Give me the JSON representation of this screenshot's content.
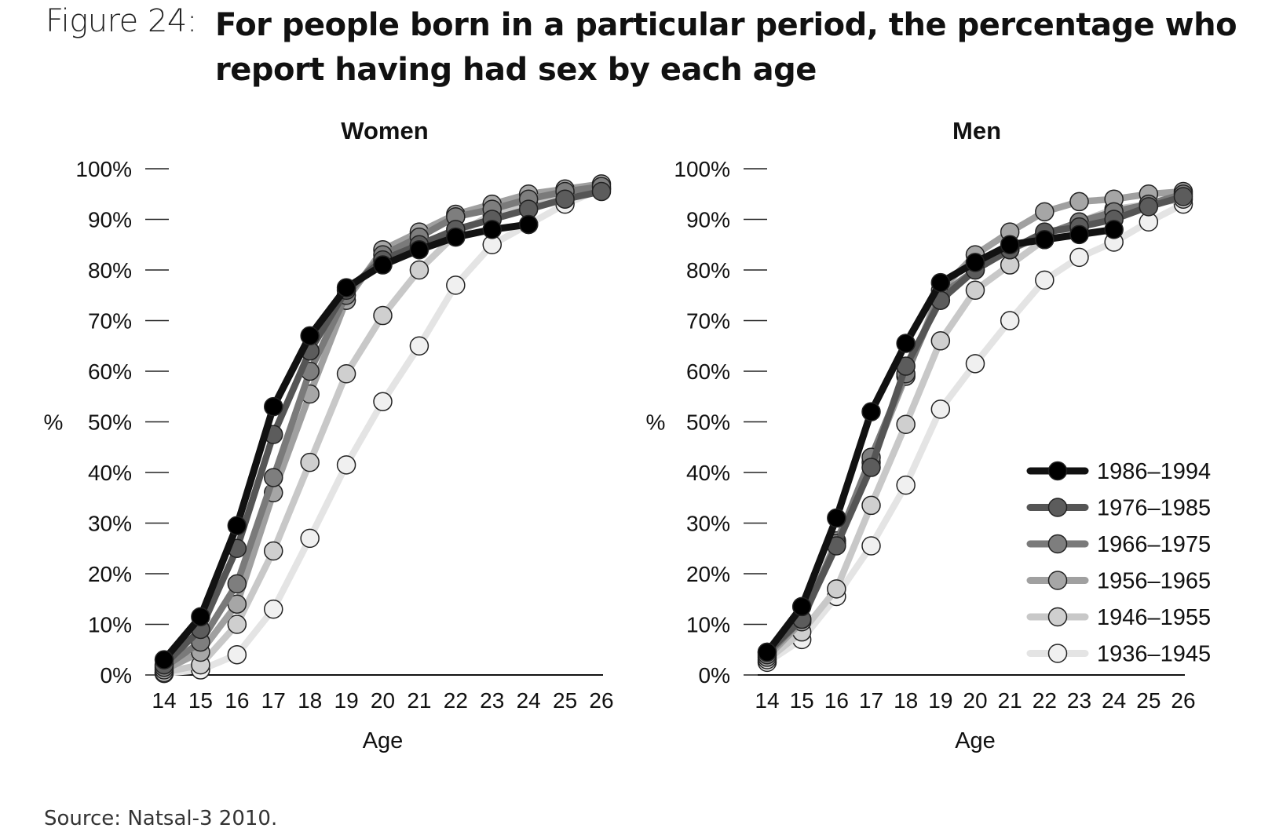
{
  "figure": {
    "label": "Figure 24:",
    "title": "For people born in a particular period, the percentage who report having had sex by each age",
    "source": "Source: Natsal-3 2010."
  },
  "colors": {
    "series": [
      "#111111",
      "#555555",
      "#7a7a7a",
      "#a0a0a0",
      "#c8c8c8",
      "#e4e4e4"
    ],
    "marker_fill": [
      "#000000",
      "#5c5c5c",
      "#7e7e7e",
      "#a6a6a6",
      "#cfcfcf",
      "#f0f0f0"
    ]
  },
  "chart_data": [
    {
      "type": "line",
      "title": "Women",
      "xlabel": "Age",
      "ylabel": "%",
      "x": [
        14,
        15,
        16,
        17,
        18,
        19,
        20,
        21,
        22,
        23,
        24,
        25,
        26
      ],
      "xticks": [
        "14",
        "15",
        "16",
        "17",
        "18",
        "19",
        "20",
        "21",
        "22",
        "23",
        "24",
        "25",
        "26"
      ],
      "ylim": [
        0,
        100
      ],
      "yticks": [
        "0%",
        "10%",
        "20%",
        "30%",
        "40%",
        "50%",
        "60%",
        "70%",
        "80%",
        "90%",
        "100%"
      ],
      "series": [
        {
          "name": "1986–1994",
          "x": [
            14,
            15,
            16,
            17,
            18,
            19,
            20,
            21,
            22,
            23,
            24
          ],
          "values": [
            3,
            11.5,
            29.5,
            53,
            67,
            76.5,
            81,
            84,
            86.5,
            88,
            89
          ]
        },
        {
          "name": "1976–1985",
          "x": [
            14,
            15,
            16,
            17,
            18,
            19,
            20,
            21,
            22,
            23,
            24,
            25,
            26
          ],
          "values": [
            2,
            9,
            25,
            47.5,
            64,
            76,
            82,
            85,
            88,
            90,
            92,
            94,
            95.5
          ]
        },
        {
          "name": "1966–1975",
          "x": [
            14,
            15,
            16,
            17,
            18,
            19,
            20,
            21,
            22,
            23,
            24,
            25,
            26
          ],
          "values": [
            1.5,
            6.5,
            18,
            39,
            60,
            75,
            83,
            86.5,
            90.5,
            92,
            94,
            95.5,
            96.5
          ]
        },
        {
          "name": "1956–1965",
          "x": [
            14,
            15,
            16,
            17,
            18,
            19,
            20,
            21,
            22,
            23,
            24,
            25,
            26
          ],
          "values": [
            1,
            4.5,
            14,
            36,
            55.5,
            74,
            84,
            87.5,
            91,
            93,
            95,
            96,
            97
          ]
        },
        {
          "name": "1946–1955",
          "x": [
            14,
            15,
            16,
            17,
            18,
            19,
            20,
            21,
            22,
            23,
            24,
            25,
            26
          ],
          "values": [
            0.5,
            2,
            10,
            24.5,
            42,
            59.5,
            71,
            80,
            87,
            91,
            93,
            95,
            96
          ]
        },
        {
          "name": "1936–1945",
          "x": [
            14,
            15,
            16,
            17,
            18,
            19,
            20,
            21,
            22,
            23,
            24,
            25,
            26
          ],
          "values": [
            0.3,
            1,
            4,
            13,
            27,
            41.5,
            54,
            65,
            77,
            85,
            89,
            93,
            96
          ]
        }
      ]
    },
    {
      "type": "line",
      "title": "Men",
      "xlabel": "Age",
      "ylabel": "%",
      "x": [
        14,
        15,
        16,
        17,
        18,
        19,
        20,
        21,
        22,
        23,
        24,
        25,
        26
      ],
      "xticks": [
        "14",
        "15",
        "16",
        "17",
        "18",
        "19",
        "20",
        "21",
        "22",
        "23",
        "24",
        "25",
        "26"
      ],
      "ylim": [
        0,
        100
      ],
      "yticks": [
        "0%",
        "10%",
        "20%",
        "30%",
        "40%",
        "50%",
        "60%",
        "70%",
        "80%",
        "90%",
        "100%"
      ],
      "legend": "bottom-right",
      "series": [
        {
          "name": "1986–1994",
          "x": [
            14,
            15,
            16,
            17,
            18,
            19,
            20,
            21,
            22,
            23,
            24
          ],
          "values": [
            4.5,
            13.5,
            31,
            52,
            65.5,
            77.5,
            81.5,
            85,
            86,
            87,
            88
          ]
        },
        {
          "name": "1976–1985",
          "x": [
            14,
            15,
            16,
            17,
            18,
            19,
            20,
            21,
            22,
            23,
            24,
            25,
            26
          ],
          "values": [
            4.5,
            11,
            25.5,
            41,
            61,
            74,
            80,
            84,
            87.5,
            88.5,
            90,
            92.5,
            94.5
          ]
        },
        {
          "name": "1966–1975",
          "x": [
            14,
            15,
            16,
            17,
            18,
            19,
            20,
            21,
            22,
            23,
            24,
            25,
            26
          ],
          "values": [
            4,
            11,
            26,
            43,
            59.5,
            75,
            80,
            84,
            87,
            89.5,
            91.5,
            93,
            95
          ]
        },
        {
          "name": "1956–1965",
          "x": [
            14,
            15,
            16,
            17,
            18,
            19,
            20,
            21,
            22,
            23,
            24,
            25,
            26
          ],
          "values": [
            3.5,
            10.5,
            26.5,
            42,
            59,
            76,
            83,
            87.5,
            91.5,
            93.5,
            94,
            95,
            95.5
          ]
        },
        {
          "name": "1946–1955",
          "x": [
            14,
            15,
            16,
            17,
            18,
            19,
            20,
            21,
            22,
            23,
            24,
            25,
            26
          ],
          "values": [
            3,
            8.5,
            17,
            33.5,
            49.5,
            66,
            76,
            81,
            86,
            89.5,
            92,
            93,
            94
          ]
        },
        {
          "name": "1936–1945",
          "x": [
            14,
            15,
            16,
            17,
            18,
            19,
            20,
            21,
            22,
            23,
            24,
            25,
            26
          ],
          "values": [
            2.5,
            7,
            15.5,
            25.5,
            37.5,
            52.5,
            61.5,
            70,
            78,
            82.5,
            85.5,
            89.5,
            93
          ]
        }
      ]
    }
  ]
}
